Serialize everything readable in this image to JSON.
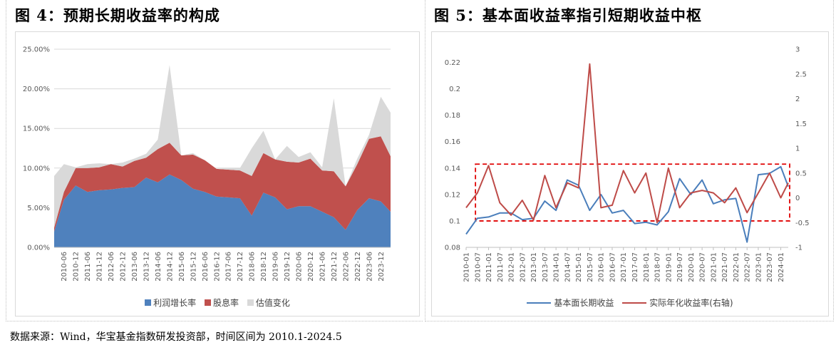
{
  "left_title": "图 4：预期长期收益率的构成",
  "right_title": "图 5：基本面收益率指引短期收益中枢",
  "source": "数据来源：Wind，华宝基金指数研发投资部，时间区间为 2010.1-2024.5",
  "chart_data": [
    {
      "type": "area",
      "stacked": true,
      "title": "图 4：预期长期收益率的构成",
      "xlabel": "",
      "ylabel": "",
      "ylim": [
        0,
        0.25
      ],
      "yticks": [
        "0.00%",
        "5.00%",
        "10.00%",
        "15.00%",
        "20.00%",
        "25.00%"
      ],
      "grid": true,
      "legend_position": "bottom",
      "x_tick_labels": [
        "2010-06",
        "2010-12",
        "2011-06",
        "2011-12",
        "2012-06",
        "2012-12",
        "2013-06",
        "2013-12",
        "2014-06",
        "2014-12",
        "2015-06",
        "2015-12",
        "2016-06",
        "2016-12",
        "2017-06",
        "2017-12",
        "2018-06",
        "2018-12",
        "2019-06",
        "2019-12",
        "2020-06",
        "2020-12",
        "2021-06",
        "2021-12",
        "2022-06",
        "2022-12",
        "2023-06",
        "2023-12"
      ],
      "x": [
        "2010-01",
        "2010-06",
        "2010-12",
        "2011-06",
        "2011-12",
        "2012-06",
        "2012-12",
        "2013-06",
        "2013-12",
        "2014-06",
        "2014-12",
        "2015-06",
        "2015-12",
        "2016-06",
        "2016-12",
        "2017-06",
        "2017-12",
        "2018-06",
        "2018-12",
        "2019-06",
        "2019-12",
        "2020-06",
        "2020-12",
        "2021-06",
        "2021-12",
        "2022-06",
        "2022-12",
        "2023-06",
        "2023-12",
        "2024-05"
      ],
      "series": [
        {
          "name": "利润增长率",
          "color": "#4f81bd",
          "values": [
            0.02,
            0.06,
            0.078,
            0.07,
            0.072,
            0.073,
            0.075,
            0.076,
            0.088,
            0.082,
            0.092,
            0.085,
            0.074,
            0.07,
            0.064,
            0.063,
            0.062,
            0.04,
            0.069,
            0.063,
            0.048,
            0.052,
            0.052,
            0.045,
            0.038,
            0.022,
            0.047,
            0.062,
            0.058,
            0.045
          ]
        },
        {
          "name": "股息率",
          "color": "#c0504d",
          "values": [
            0.005,
            0.01,
            0.022,
            0.03,
            0.029,
            0.032,
            0.027,
            0.033,
            0.025,
            0.042,
            0.04,
            0.031,
            0.043,
            0.04,
            0.035,
            0.035,
            0.035,
            0.05,
            0.05,
            0.048,
            0.06,
            0.055,
            0.06,
            0.052,
            0.058,
            0.055,
            0.058,
            0.075,
            0.082,
            0.07
          ]
        },
        {
          "name": "估值变化",
          "color": "#d9d9d9",
          "values": [
            0.065,
            0.035,
            0.001,
            0.005,
            0.005,
            0.0,
            0.005,
            0.003,
            0.005,
            0.012,
            0.098,
            0.0,
            0.002,
            0.0,
            0.0,
            0.002,
            0.003,
            0.035,
            0.028,
            0.0,
            0.02,
            0.007,
            0.008,
            0.004,
            0.092,
            0.0,
            0.007,
            0.005,
            0.05,
            0.055
          ]
        }
      ]
    },
    {
      "type": "line",
      "title": "图 5：基本面收益率指引短期收益中枢",
      "xlabel": "",
      "ylabel": "",
      "ylim": [
        0.08,
        0.23
      ],
      "yticks": [
        "0.08",
        "0.1",
        "0.12",
        "0.14",
        "0.16",
        "0.18",
        "0.2",
        "0.22"
      ],
      "y2lim": [
        -1,
        3
      ],
      "y2ticks": [
        "-1",
        "-0.5",
        "0",
        "0.5",
        "1",
        "1.5",
        "2",
        "2.5",
        "3"
      ],
      "grid": false,
      "legend_position": "bottom",
      "x_tick_labels": [
        "2010-01",
        "2010-07",
        "2011-01",
        "2011-07",
        "2012-01",
        "2012-07",
        "2013-01",
        "2013-07",
        "2014-01",
        "2014-07",
        "2015-01",
        "2015-07",
        "2016-01",
        "2016-07",
        "2017-01",
        "2017-07",
        "2018-01",
        "2018-07",
        "2019-01",
        "2019-07",
        "2020-01",
        "2020-07",
        "2021-01",
        "2021-07",
        "2022-01",
        "2022-07",
        "2023-01",
        "2023-07",
        "2024-01"
      ],
      "x": [
        "2010-01",
        "2010-07",
        "2011-01",
        "2011-07",
        "2012-01",
        "2012-07",
        "2013-01",
        "2013-07",
        "2014-01",
        "2014-07",
        "2015-01",
        "2015-07",
        "2016-01",
        "2016-07",
        "2017-01",
        "2017-07",
        "2018-01",
        "2018-07",
        "2019-01",
        "2019-07",
        "2020-01",
        "2020-07",
        "2021-01",
        "2021-07",
        "2022-01",
        "2022-07",
        "2023-01",
        "2023-07",
        "2024-01",
        "2024-05"
      ],
      "series": [
        {
          "name": "基本面长期收益",
          "axis": "left",
          "color": "#4a7ebb",
          "values": [
            0.09,
            0.102,
            0.103,
            0.106,
            0.106,
            0.101,
            0.102,
            0.115,
            0.108,
            0.131,
            0.127,
            0.108,
            0.12,
            0.106,
            0.108,
            0.098,
            0.099,
            0.097,
            0.107,
            0.132,
            0.12,
            0.131,
            0.113,
            0.116,
            0.117,
            0.084,
            0.135,
            0.136,
            0.141,
            0.126
          ]
        },
        {
          "name": "实际年化收益率(右轴)",
          "axis": "right",
          "color": "#be4b48",
          "values": [
            -0.2,
            0.1,
            0.65,
            -0.1,
            -0.35,
            -0.05,
            -0.45,
            0.45,
            -0.2,
            0.3,
            0.2,
            2.7,
            -0.2,
            -0.15,
            0.55,
            0.1,
            0.5,
            -0.5,
            0.6,
            -0.2,
            0.1,
            0.15,
            0.1,
            -0.1,
            0.2,
            -0.3,
            0.1,
            0.5,
            0.0,
            0.3
          ]
        }
      ],
      "annotation": "red dashed box highlighting range 0.10–0.143"
    }
  ]
}
